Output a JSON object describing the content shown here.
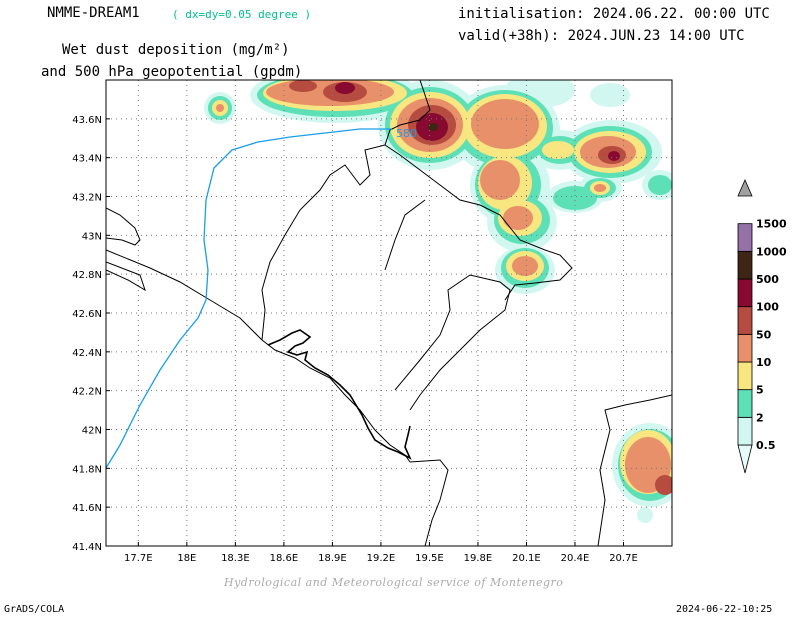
{
  "header": {
    "model": "NMME-DREAM1",
    "resolution": "( dx=dy=0.05 degree )",
    "init": "initialisation: 2024.06.22. 00:00 UTC",
    "valid": "valid(+38h): 2024.JUN.23 14:00 UTC",
    "title_line1": "Wet dust deposition (mg/m²)",
    "title_line2": "and 500 hPa geopotential (gpdm)"
  },
  "map": {
    "lon_range": [
      17.5,
      21.0
    ],
    "lat_range": [
      41.4,
      43.8
    ],
    "lon_ticks": [
      {
        "v": 17.7,
        "label": "17.7E"
      },
      {
        "v": 18.0,
        "label": "18E"
      },
      {
        "v": 18.3,
        "label": "18.3E"
      },
      {
        "v": 18.6,
        "label": "18.6E"
      },
      {
        "v": 18.9,
        "label": "18.9E"
      },
      {
        "v": 19.2,
        "label": "19.2E"
      },
      {
        "v": 19.5,
        "label": "19.5E"
      },
      {
        "v": 19.8,
        "label": "19.8E"
      },
      {
        "v": 20.1,
        "label": "20.1E"
      },
      {
        "v": 20.4,
        "label": "20.4E"
      },
      {
        "v": 20.7,
        "label": "20.7E"
      }
    ],
    "lat_ticks": [
      {
        "v": 41.4,
        "label": "41.4N"
      },
      {
        "v": 41.6,
        "label": "41.6N"
      },
      {
        "v": 41.8,
        "label": "41.8N"
      },
      {
        "v": 42.0,
        "label": "42N"
      },
      {
        "v": 42.2,
        "label": "42.2N"
      },
      {
        "v": 42.4,
        "label": "42.4N"
      },
      {
        "v": 42.6,
        "label": "42.6N"
      },
      {
        "v": 42.8,
        "label": "42.8N"
      },
      {
        "v": 43.0,
        "label": "43N"
      },
      {
        "v": 43.2,
        "label": "43.2N"
      },
      {
        "v": 43.4,
        "label": "43.4N"
      },
      {
        "v": 43.6,
        "label": "43.6N"
      }
    ],
    "grid": true,
    "contour_label": "580"
  },
  "colorbar": {
    "levels": [
      {
        "label": "",
        "color": "#e6fbf7"
      },
      {
        "label": "0.5",
        "color": "#d2f7f1"
      },
      {
        "label": "2",
        "color": "#5ee0b6"
      },
      {
        "label": "5",
        "color": "#f8e680"
      },
      {
        "label": "10",
        "color": "#e8906a"
      },
      {
        "label": "50",
        "color": "#b64c40"
      },
      {
        "label": "100",
        "color": "#880a30"
      },
      {
        "label": "500",
        "color": "#3e2616"
      },
      {
        "label": "1000",
        "color": "#9472a8"
      },
      {
        "label": "1500",
        "color": "#a0a0a0"
      }
    ]
  },
  "footer": {
    "credit": "Hydrological and Meteorological service of Montenegro",
    "left": "GrADS/COLA",
    "right": "2024-06-22-10:25"
  }
}
